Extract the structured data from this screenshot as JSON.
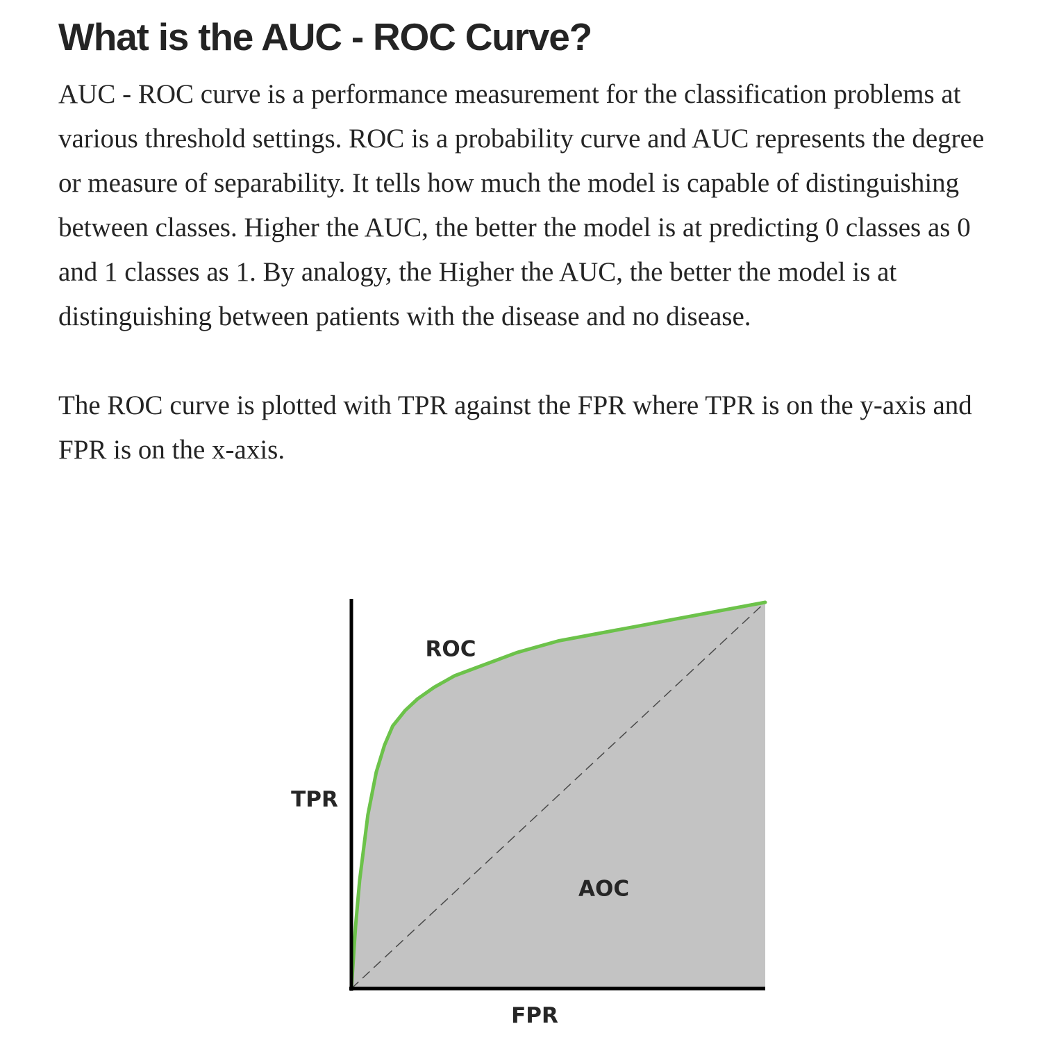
{
  "article": {
    "heading": "What is the AUC - ROC Curve?",
    "paragraphs": [
      "AUC - ROC curve is a performance measurement for the classification problems at various threshold settings. ROC is a probability curve and AUC represents the degree or measure of separability. It tells how much the model is capable of distinguishing between classes. Higher the AUC, the better the model is at predicting 0 classes as 0 and 1 classes as 1. By analogy, the Higher the AUC, the better the model is at distinguishing between patients with the disease and no disease.",
      "The ROC curve is plotted with TPR against the FPR where TPR is on the y-axis and FPR is on the x-axis."
    ]
  },
  "figure": {
    "colors": {
      "curve": "#6cc24a",
      "area": "#c3c3c3",
      "axis": "#000000",
      "diagonal": "#4a4a4a",
      "text": "#262626"
    }
  },
  "chart_data": {
    "type": "area",
    "xlabel": "FPR",
    "ylabel": "TPR",
    "xlim": [
      0,
      1
    ],
    "ylim": [
      0,
      1
    ],
    "grid": false,
    "series": [
      {
        "name": "ROC",
        "x": [
          0,
          0.01,
          0.02,
          0.04,
          0.06,
          0.08,
          0.1,
          0.13,
          0.16,
          0.2,
          0.25,
          0.3,
          0.4,
          0.5,
          0.6,
          0.7,
          0.8,
          0.9,
          1.0
        ],
        "y": [
          0,
          0.16,
          0.28,
          0.45,
          0.56,
          0.63,
          0.68,
          0.72,
          0.75,
          0.78,
          0.81,
          0.83,
          0.87,
          0.9,
          0.92,
          0.94,
          0.96,
          0.98,
          1.0
        ]
      }
    ],
    "reference_line": {
      "x": [
        0,
        1
      ],
      "y": [
        0,
        1
      ],
      "style": "dashed"
    },
    "annotations": [
      {
        "text": "ROC",
        "x": 0.24,
        "y": 0.88
      },
      {
        "text": "AOC",
        "x": 0.61,
        "y": 0.26
      }
    ]
  }
}
